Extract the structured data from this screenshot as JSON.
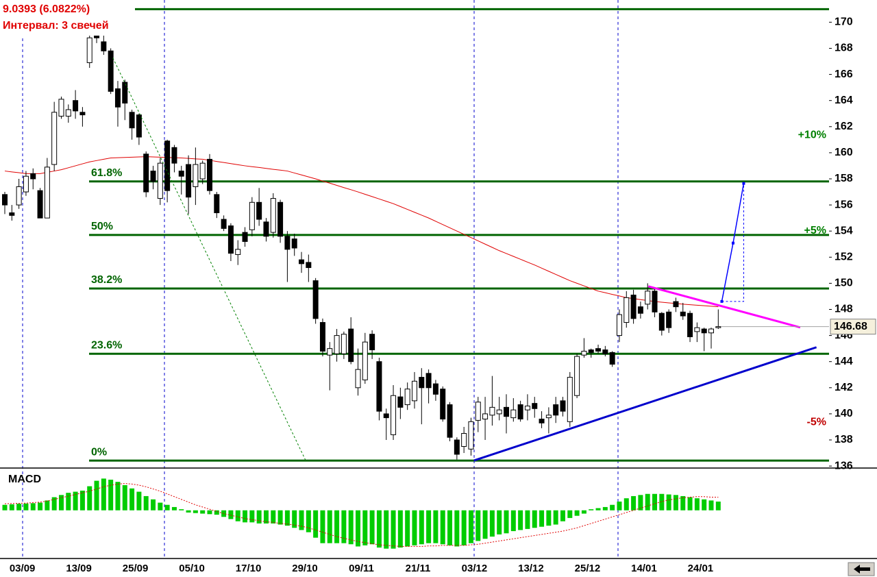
{
  "chart_data": [
    {
      "type": "candlestick",
      "info_lines": [
        "9.0393 (6.0822%)",
        "Интервал: 3 свечей"
      ],
      "categories": [
        null,
        null,
        "03/09",
        null,
        null,
        null,
        null,
        null,
        null,
        null,
        "13/09",
        null,
        null,
        null,
        null,
        null,
        null,
        null,
        "25/09",
        null,
        null,
        null,
        null,
        null,
        null,
        null,
        "05/10",
        null,
        null,
        null,
        null,
        null,
        null,
        null,
        "17/10",
        null,
        null,
        null,
        null,
        null,
        null,
        null,
        "29/10",
        null,
        null,
        null,
        null,
        null,
        null,
        null,
        "09/11",
        null,
        null,
        null,
        null,
        null,
        null,
        null,
        "21/11",
        null,
        null,
        null,
        null,
        null,
        null,
        null,
        "03/12",
        null,
        null,
        null,
        null,
        null,
        null,
        null,
        "13/12",
        null,
        null,
        null,
        null,
        null,
        null,
        null,
        "25/12",
        null,
        null,
        null,
        null,
        null,
        null,
        null,
        "14/01",
        null,
        null,
        null,
        null,
        null,
        null,
        null,
        "24/01",
        null,
        null,
        null
      ],
      "open": [
        156.8,
        155.4,
        156.0,
        157.0,
        158.4,
        157.1,
        155.0,
        159.1,
        162.8,
        162.8,
        164.0,
        163.1,
        166.9,
        169.6,
        168.5,
        167.8,
        164.9,
        165.4,
        163.1,
        162.9,
        159.9,
        158.6,
        156.5,
        160.9,
        160.4,
        158.6,
        159.1,
        157.4,
        158.0,
        159.5,
        156.8,
        154.9,
        154.4,
        152.2,
        153.9,
        154.1,
        156.2,
        154.7,
        153.9,
        156.2,
        153.6,
        153.4,
        151.8,
        151.6,
        150.2,
        147.0,
        144.5,
        144.6,
        144.6,
        146.5,
        142.0,
        142.6,
        146.1,
        144.0,
        140.0,
        138.4,
        141.3,
        140.7,
        141.0,
        142.8,
        143.1,
        142.3,
        141.9,
        140.7,
        138.0,
        137.5,
        137.3,
        139.5,
        139.6,
        139.9,
        140.0,
        140.5,
        139.7,
        140.7,
        140.3,
        140.8,
        139.6,
        139.7,
        140.7,
        141.0,
        139.4,
        141.4,
        144.5,
        144.9,
        145.0,
        144.9,
        144.7,
        146.0,
        147.0,
        149.1,
        148.2,
        148.4,
        149.4,
        147.7,
        147.8,
        148.6,
        147.8,
        147.7,
        146.3,
        146.5,
        146.2,
        146.6
      ],
      "high": [
        157.0,
        156.0,
        158.0,
        158.6,
        158.8,
        157.3,
        159.6,
        163.9,
        164.3,
        163.7,
        164.8,
        163.5,
        169.7,
        170.5,
        169.0,
        168.0,
        165.5,
        165.6,
        163.3,
        163.0,
        160.1,
        159.0,
        159.6,
        161.0,
        160.6,
        159.0,
        159.8,
        160.4,
        159.4,
        159.9,
        157.0,
        155.2,
        154.6,
        153.3,
        154.3,
        156.6,
        157.3,
        155.0,
        156.9,
        156.4,
        154.0,
        153.8,
        152.4,
        152.2,
        150.4,
        147.3,
        145.5,
        146.5,
        146.3,
        147.4,
        145.0,
        146.2,
        146.4,
        144.3,
        140.4,
        142.2,
        142.0,
        142.4,
        143.2,
        143.5,
        143.4,
        142.6,
        142.1,
        140.9,
        138.2,
        139.0,
        139.7,
        141.3,
        141.3,
        142.9,
        141.3,
        141.5,
        141.2,
        141.0,
        141.5,
        141.3,
        140.2,
        140.5,
        141.3,
        141.3,
        143.2,
        144.6,
        145.8,
        145.0,
        145.3,
        145.2,
        144.8,
        148.0,
        149.4,
        149.5,
        148.6,
        150.0,
        149.6,
        147.8,
        148.0,
        148.9,
        148.5,
        147.9,
        147.0,
        146.6,
        146.6,
        148.0
      ],
      "low": [
        155.3,
        154.8,
        155.7,
        156.7,
        157.2,
        155.0,
        155.0,
        158.6,
        162.6,
        162.3,
        162.6,
        162.0,
        166.5,
        168.4,
        167.5,
        164.5,
        162.0,
        162.5,
        161.0,
        160.6,
        156.6,
        157.2,
        156.0,
        156.2,
        158.5,
        156.8,
        155.3,
        156.0,
        157.6,
        156.8,
        155.0,
        154.0,
        151.7,
        151.4,
        152.8,
        153.6,
        154.4,
        153.2,
        153.5,
        153.1,
        150.1,
        152.1,
        150.8,
        150.1,
        146.9,
        144.4,
        141.8,
        144.0,
        144.2,
        143.8,
        141.4,
        142.3,
        144.2,
        139.5,
        138.0,
        138.0,
        139.6,
        140.3,
        140.4,
        139.2,
        140.8,
        141.0,
        139.4,
        137.9,
        136.5,
        137.0,
        136.8,
        138.6,
        138.0,
        139.1,
        139.5,
        138.5,
        139.4,
        139.4,
        139.5,
        139.7,
        138.9,
        138.5,
        139.3,
        139.8,
        139.0,
        141.2,
        144.3,
        144.3,
        144.6,
        144.4,
        143.6,
        145.5,
        146.6,
        146.9,
        147.3,
        148.0,
        147.4,
        146.0,
        146.2,
        147.8,
        147.2,
        145.5,
        145.5,
        144.8,
        145.0,
        146.5
      ],
      "close": [
        156.0,
        155.2,
        157.4,
        158.2,
        158.0,
        155.0,
        158.9,
        163.1,
        164.1,
        163.3,
        163.2,
        162.9,
        168.8,
        168.8,
        167.8,
        164.7,
        163.5,
        163.8,
        161.9,
        161.2,
        157.0,
        157.8,
        159.2,
        157.1,
        159.2,
        158.2,
        156.6,
        159.1,
        159.2,
        157.1,
        155.4,
        154.2,
        152.3,
        152.6,
        153.2,
        156.2,
        154.9,
        153.6,
        156.5,
        153.6,
        152.6,
        152.7,
        151.5,
        151.2,
        147.3,
        144.8,
        145.0,
        146.0,
        146.1,
        144.0,
        143.4,
        145.5,
        144.9,
        140.2,
        139.7,
        141.4,
        140.5,
        141.9,
        142.5,
        142.0,
        142.0,
        141.5,
        139.6,
        138.2,
        136.9,
        138.5,
        139.4,
        140.9,
        140.0,
        140.5,
        140.3,
        139.8,
        140.3,
        139.6,
        140.6,
        140.4,
        139.3,
        139.9,
        139.9,
        140.2,
        142.8,
        144.4,
        144.8,
        144.7,
        144.8,
        144.6,
        143.8,
        147.6,
        148.9,
        147.3,
        147.7,
        149.4,
        147.8,
        146.4,
        146.6,
        148.2,
        147.5,
        145.9,
        146.6,
        146.2,
        146.5,
        146.68
      ],
      "moving_average": {
        "color": "#e00000",
        "values": [
          158.6,
          158.53,
          158.47,
          158.4,
          158.4,
          158.4,
          158.5,
          158.6,
          158.7,
          158.85,
          159.0,
          159.15,
          159.3,
          159.4,
          159.5,
          159.6,
          159.62,
          159.64,
          159.66,
          159.68,
          159.7,
          159.68,
          159.66,
          159.64,
          159.62,
          159.6,
          159.57,
          159.53,
          159.5,
          159.42,
          159.33,
          159.25,
          159.17,
          159.08,
          159.0,
          158.93,
          158.87,
          158.8,
          158.73,
          158.67,
          158.6,
          158.45,
          158.3,
          158.15,
          158.0,
          157.83,
          157.67,
          157.5,
          157.33,
          157.17,
          157.0,
          156.82,
          156.64,
          156.46,
          156.28,
          156.1,
          155.88,
          155.66,
          155.44,
          155.22,
          155.0,
          154.75,
          154.5,
          154.25,
          154.0,
          153.75,
          153.5,
          153.25,
          153.0,
          152.75,
          152.5,
          152.28,
          152.06,
          151.84,
          151.62,
          151.4,
          151.16,
          150.92,
          150.68,
          150.44,
          150.2,
          150.0,
          149.8,
          149.6,
          149.4,
          149.28,
          149.15,
          149.03,
          148.9,
          148.83,
          148.75,
          148.68,
          148.6,
          148.55,
          148.5,
          148.45,
          148.4,
          148.36,
          148.32,
          148.28,
          148.24,
          148.2
        ]
      },
      "levels": [
        {
          "label": "0%",
          "value": 136.42
        },
        {
          "label": "23.6%",
          "value": 144.6
        },
        {
          "label": "38.2%",
          "value": 149.6
        },
        {
          "label": "50%",
          "value": 153.7
        },
        {
          "label": "61.8%",
          "value": 157.8
        },
        {
          "value": 171.0
        }
      ],
      "level_color": "#006400",
      "percent_marks": [
        {
          "label": "+10%",
          "value": 161.35,
          "color": "#008000"
        },
        {
          "label": "+5%",
          "value": 154.01,
          "color": "#008000"
        },
        {
          "label": "-5%",
          "value": 139.35,
          "color": "#c00000"
        }
      ],
      "trendlines": [
        {
          "color": "#0000cc",
          "x": [
            66.4,
            114.9
          ],
          "y": [
            136.42,
            145.1
          ]
        },
        {
          "color": "#ff00ff",
          "x": [
            91.1,
            112.6
          ],
          "y": [
            149.77,
            146.62
          ]
        },
        {
          "color": "#008000",
          "x": [
            15.3,
            42.6
          ],
          "y": [
            167.27,
            136.42
          ],
          "dash": true
        },
        {
          "color": "#0000ff",
          "x": [
            101.5,
            103.1,
            104.6
          ],
          "y": [
            148.61,
            153.08,
            157.65
          ]
        },
        {
          "color": "#0000ff",
          "x": [
            101.5,
            104.6,
            104.6
          ],
          "y": [
            148.61,
            148.61,
            157.65
          ],
          "dash": true
        }
      ],
      "last_price": 146.68,
      "ylim": [
        135.9,
        171.7
      ],
      "yticks": [
        136,
        138,
        140,
        142,
        144,
        146,
        148,
        150,
        152,
        154,
        156,
        158,
        160,
        162,
        164,
        166,
        168,
        170
      ]
    },
    {
      "type": "macd",
      "title": "MACD",
      "color": "#00cc00",
      "values": [
        0.5,
        0.55,
        0.6,
        0.62,
        0.65,
        0.7,
        0.9,
        1.2,
        1.4,
        1.6,
        1.7,
        1.8,
        2.2,
        2.7,
        2.9,
        2.8,
        2.6,
        2.3,
        2.0,
        1.7,
        1.3,
        1.0,
        0.7,
        0.5,
        0.3,
        0.1,
        -0.2,
        -0.25,
        -0.3,
        -0.35,
        -0.4,
        -0.6,
        -0.8,
        -1.0,
        -1.1,
        -1.1,
        -1.2,
        -1.2,
        -1.2,
        -1.3,
        -1.4,
        -1.6,
        -1.8,
        -2.0,
        -2.5,
        -3.0,
        -3.0,
        -3.0,
        -3.0,
        -3.1,
        -3.3,
        -3.2,
        -3.1,
        -3.4,
        -3.5,
        -3.5,
        -3.4,
        -3.3,
        -3.2,
        -3.1,
        -3.0,
        -3.0,
        -3.1,
        -3.2,
        -3.3,
        -3.2,
        -3.0,
        -2.8,
        -2.6,
        -2.4,
        -2.2,
        -2.1,
        -1.9,
        -1.8,
        -1.7,
        -1.6,
        -1.5,
        -1.4,
        -1.3,
        -1.0,
        -0.7,
        -0.5,
        -0.3,
        0.1,
        0.2,
        0.3,
        0.5,
        0.8,
        1.1,
        1.3,
        1.4,
        1.5,
        1.5,
        1.5,
        1.45,
        1.4,
        1.3,
        1.2,
        1.1,
        1.0,
        0.9,
        0.8
      ],
      "signal": {
        "color": "#e00000",
        "values": [
          0.6,
          0.62,
          0.64,
          0.66,
          0.7,
          0.75,
          0.85,
          1.0,
          1.15,
          1.3,
          1.45,
          1.6,
          1.75,
          1.95,
          2.15,
          2.3,
          2.4,
          2.45,
          2.4,
          2.3,
          2.15,
          1.95,
          1.75,
          1.5,
          1.25,
          1.0,
          0.75,
          0.5,
          0.3,
          0.1,
          -0.1,
          -0.3,
          -0.45,
          -0.6,
          -0.75,
          -0.85,
          -0.95,
          -1.05,
          -1.1,
          -1.2,
          -1.25,
          -1.35,
          -1.45,
          -1.6,
          -1.8,
          -2.0,
          -2.2,
          -2.4,
          -2.55,
          -2.7,
          -2.85,
          -2.95,
          -3.05,
          -3.15,
          -3.2,
          -3.25,
          -3.3,
          -3.3,
          -3.3,
          -3.3,
          -3.25,
          -3.25,
          -3.2,
          -3.2,
          -3.2,
          -3.2,
          -3.15,
          -3.1,
          -3.0,
          -2.9,
          -2.8,
          -2.7,
          -2.6,
          -2.5,
          -2.4,
          -2.3,
          -2.2,
          -2.1,
          -2.0,
          -1.9,
          -1.75,
          -1.6,
          -1.4,
          -1.2,
          -1.0,
          -0.8,
          -0.6,
          -0.4,
          -0.2,
          0.0,
          0.2,
          0.4,
          0.6,
          0.8,
          0.95,
          1.05,
          1.15,
          1.2,
          1.25,
          1.25,
          1.2,
          1.2
        ]
      },
      "ylim": [
        -4.4,
        3.8
      ]
    }
  ]
}
